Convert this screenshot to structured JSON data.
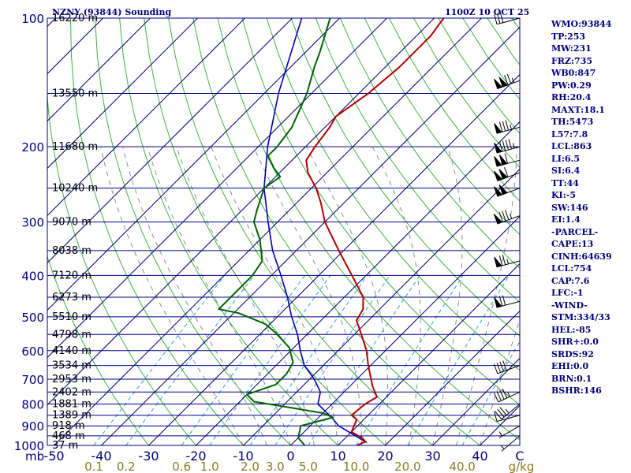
{
  "header": {
    "station": "NZNY (93844) Sounding",
    "time": "1100Z 10 OCT 25"
  },
  "indices": [
    "WMO:93844",
    "TP:253",
    "MW:231",
    "FRZ:735",
    "WB0:847",
    "PW:0.29",
    "RH:20.4",
    "MAXT:18.1",
    "TH:5473",
    "L57:7.8",
    "LCL:863",
    "LI:6.5",
    "SI:6.4",
    "TT:44",
    "KI:-5",
    "SW:146",
    "EI:1.4",
    "-PARCEL-",
    "CAPE:13",
    "CINH:64639",
    "LCL:754",
    "CAP:7.6",
    "LFC:-1",
    "-WIND-",
    "STM:334/33",
    "HEL:-85",
    "SHR+:0.0",
    "SRDS:92",
    "EHI:0.0",
    "BRN:0.1",
    "BSHR:146"
  ],
  "colors": {
    "frame": "#00007a",
    "isotherm": "#00007a",
    "dry_adiabat": "#3cb43c",
    "moist_adiabat": "#8c8c8c",
    "mixing_ratio": "#28a0dc",
    "temperature": "#b40000",
    "dewpoint": "#006400",
    "parcel": "#0000b4",
    "mixing_label": "#8c7a1e"
  },
  "chart_data": {
    "type": "skew-t",
    "title": "NZNY (93844) Sounding",
    "pressure_unit": "mb",
    "temperature_unit": "C",
    "mixing_ratio_unit": "g/kg",
    "pressure_range": [
      1000,
      100
    ],
    "pressure_ticks": [
      100,
      200,
      300,
      400,
      500,
      600,
      700,
      800,
      900,
      1000
    ],
    "pressure_tick_labels": [
      "100",
      "200",
      "300",
      "400",
      "500",
      "600",
      "700",
      "800",
      "900",
      "1000"
    ],
    "temperature_ticks": [
      -50,
      -40,
      -30,
      -20,
      -10,
      0,
      10,
      20,
      30,
      40
    ],
    "temperature_tick_labels": [
      "-50",
      "-40",
      "-30",
      "-20",
      "-10",
      "0",
      "10",
      "20",
      "30",
      "40"
    ],
    "corner_labels": {
      "pressure": "mb",
      "temperature": "C",
      "mixing": "g/kg"
    },
    "mixing_ratio_lines": [
      {
        "w": 0.1,
        "label": "0.1"
      },
      {
        "w": 0.2,
        "label": "0.2"
      },
      {
        "w": 0.6,
        "label": "0.6"
      },
      {
        "w": 1.0,
        "label": "1.0"
      },
      {
        "w": 2.0,
        "label": "2.0"
      },
      {
        "w": 3.0,
        "label": "3.0"
      },
      {
        "w": 5.0,
        "label": "5.0"
      },
      {
        "w": 10.0,
        "label": "10.0"
      },
      {
        "w": 20.0,
        "label": "20.0"
      },
      {
        "w": 40.0,
        "label": "40.0"
      }
    ],
    "heights": [
      {
        "p": 100,
        "label": "16220 m"
      },
      {
        "p": 150,
        "label": "13550 m"
      },
      {
        "p": 200,
        "label": "11680 m"
      },
      {
        "p": 250,
        "label": "10240 m"
      },
      {
        "p": 300,
        "label": "9070 m"
      },
      {
        "p": 350,
        "label": "8038 m"
      },
      {
        "p": 400,
        "label": "7120 m"
      },
      {
        "p": 450,
        "label": "6273 m"
      },
      {
        "p": 500,
        "label": "5510 m"
      },
      {
        "p": 550,
        "label": "4798 m"
      },
      {
        "p": 600,
        "label": "4140 m"
      },
      {
        "p": 650,
        "label": "3534 m"
      },
      {
        "p": 700,
        "label": "2953 m"
      },
      {
        "p": 750,
        "label": "2402 m"
      },
      {
        "p": 800,
        "label": "1881 m"
      },
      {
        "p": 850,
        "label": "1389 m"
      },
      {
        "p": 900,
        "label": "918 m"
      },
      {
        "p": 950,
        "label": "468 m"
      },
      {
        "p": 1000,
        "label": "37 m"
      }
    ],
    "temperature_profile": [
      [
        1000,
        14
      ],
      [
        980,
        15
      ],
      [
        960,
        13.5
      ],
      [
        930,
        10
      ],
      [
        870,
        8.5
      ],
      [
        850,
        6.5
      ],
      [
        800,
        7
      ],
      [
        770,
        8
      ],
      [
        730,
        5
      ],
      [
        700,
        3
      ],
      [
        650,
        -0.5
      ],
      [
        600,
        -4
      ],
      [
        550,
        -8.5
      ],
      [
        510,
        -12.5
      ],
      [
        480,
        -13.5
      ],
      [
        450,
        -16
      ],
      [
        400,
        -23
      ],
      [
        350,
        -31
      ],
      [
        300,
        -40
      ],
      [
        270,
        -45
      ],
      [
        250,
        -49
      ],
      [
        230,
        -54
      ],
      [
        215,
        -57
      ],
      [
        200,
        -58
      ],
      [
        180,
        -59
      ],
      [
        170,
        -60
      ],
      [
        150,
        -58
      ],
      [
        130,
        -57
      ],
      [
        110,
        -57
      ],
      [
        100,
        -58
      ]
    ],
    "dewpoint_profile": [
      [
        1000,
        3
      ],
      [
        960,
        0
      ],
      [
        900,
        -2
      ],
      [
        860,
        3
      ],
      [
        840,
        0
      ],
      [
        810,
        -10
      ],
      [
        790,
        -17
      ],
      [
        760,
        -20
      ],
      [
        720,
        -16
      ],
      [
        680,
        -16
      ],
      [
        640,
        -17
      ],
      [
        590,
        -21
      ],
      [
        545,
        -27
      ],
      [
        520,
        -31
      ],
      [
        490,
        -39
      ],
      [
        480,
        -44
      ],
      [
        450,
        -44
      ],
      [
        400,
        -44
      ],
      [
        370,
        -45
      ],
      [
        330,
        -50
      ],
      [
        300,
        -55
      ],
      [
        280,
        -57
      ],
      [
        250,
        -60
      ],
      [
        235,
        -59
      ],
      [
        225,
        -62
      ],
      [
        210,
        -66
      ],
      [
        200,
        -66
      ],
      [
        180,
        -67
      ],
      [
        150,
        -71
      ],
      [
        130,
        -75
      ],
      [
        120,
        -77
      ],
      [
        100,
        -82
      ]
    ],
    "parcel_profile": [
      [
        985,
        15.5
      ],
      [
        900,
        6
      ],
      [
        863,
        3
      ],
      [
        800,
        -3
      ],
      [
        750,
        -5
      ],
      [
        700,
        -9
      ],
      [
        650,
        -14
      ],
      [
        600,
        -18
      ],
      [
        550,
        -22
      ],
      [
        500,
        -27
      ],
      [
        450,
        -32
      ],
      [
        400,
        -38
      ],
      [
        350,
        -45
      ],
      [
        300,
        -52
      ],
      [
        250,
        -60
      ],
      [
        200,
        -68
      ],
      [
        150,
        -77
      ],
      [
        100,
        -88
      ]
    ],
    "wind_barbs": [
      {
        "p": 100,
        "dir": 255,
        "speed": 30
      },
      {
        "p": 140,
        "dir": 250,
        "speed": 125
      },
      {
        "p": 180,
        "dir": 255,
        "speed": 85
      },
      {
        "p": 200,
        "dir": 255,
        "speed": 95
      },
      {
        "p": 215,
        "dir": 255,
        "speed": 110
      },
      {
        "p": 230,
        "dir": 250,
        "speed": 110
      },
      {
        "p": 250,
        "dir": 250,
        "speed": 100
      },
      {
        "p": 290,
        "dir": 250,
        "speed": 85
      },
      {
        "p": 370,
        "dir": 255,
        "speed": 75
      },
      {
        "p": 460,
        "dir": 255,
        "speed": 70
      },
      {
        "p": 650,
        "dir": 250,
        "speed": 40
      },
      {
        "p": 750,
        "dir": 245,
        "speed": 45
      },
      {
        "p": 800,
        "dir": 230,
        "speed": 35
      },
      {
        "p": 850,
        "dir": 255,
        "speed": 10
      },
      {
        "p": 900,
        "dir": 240,
        "speed": 5
      },
      {
        "p": 950,
        "dir": 230,
        "speed": 5
      }
    ]
  }
}
